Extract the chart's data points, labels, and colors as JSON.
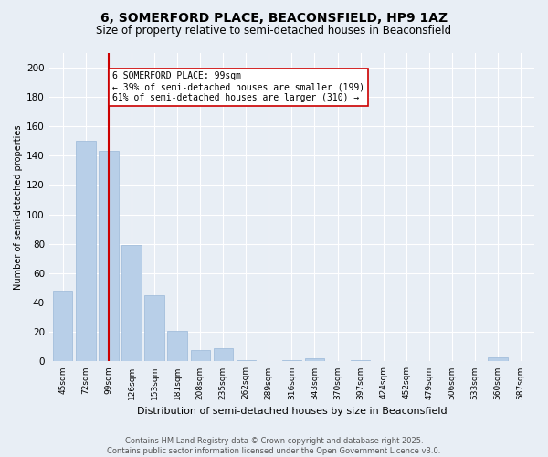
{
  "title": "6, SOMERFORD PLACE, BEACONSFIELD, HP9 1AZ",
  "subtitle": "Size of property relative to semi-detached houses in Beaconsfield",
  "xlabel": "Distribution of semi-detached houses by size in Beaconsfield",
  "ylabel": "Number of semi-detached properties",
  "categories": [
    "45sqm",
    "72sqm",
    "99sqm",
    "126sqm",
    "153sqm",
    "181sqm",
    "208sqm",
    "235sqm",
    "262sqm",
    "289sqm",
    "316sqm",
    "343sqm",
    "370sqm",
    "397sqm",
    "424sqm",
    "452sqm",
    "479sqm",
    "506sqm",
    "533sqm",
    "560sqm",
    "587sqm"
  ],
  "values": [
    48,
    150,
    143,
    79,
    45,
    21,
    8,
    9,
    1,
    0,
    1,
    2,
    0,
    1,
    0,
    0,
    0,
    0,
    0,
    3,
    0
  ],
  "bar_color": "#b8cfe8",
  "bar_edge_color": "#9ab8d8",
  "highlight_bar_index": 2,
  "highlight_line_color": "#cc0000",
  "annotation_text": "6 SOMERFORD PLACE: 99sqm\n← 39% of semi-detached houses are smaller (199)\n61% of semi-detached houses are larger (310) →",
  "annotation_box_color": "#ffffff",
  "annotation_box_edge_color": "#cc0000",
  "ylim": [
    0,
    210
  ],
  "yticks": [
    0,
    20,
    40,
    60,
    80,
    100,
    120,
    140,
    160,
    180,
    200
  ],
  "background_color": "#e8eef5",
  "footer_text": "Contains HM Land Registry data © Crown copyright and database right 2025.\nContains public sector information licensed under the Open Government Licence v3.0.",
  "title_fontsize": 10,
  "subtitle_fontsize": 8.5,
  "annotation_fontsize": 7,
  "footer_fontsize": 6,
  "ylabel_fontsize": 7,
  "xlabel_fontsize": 8
}
